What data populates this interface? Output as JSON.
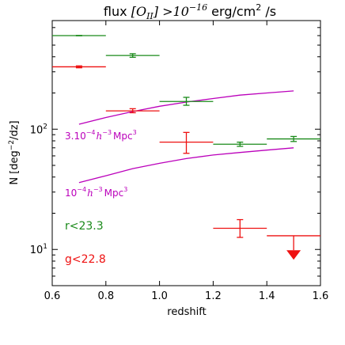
{
  "chart_data": {
    "type": "scatter",
    "title": {
      "prefix": "flux ",
      "math": "[O",
      "math_sub": "II",
      "math_close": "]",
      "gt": " >10",
      "gt_sup": "−16",
      "unit": " erg/cm",
      "unit_sup": "2",
      "unit_end": " /s"
    },
    "xlabel": "redshift",
    "ylabel": "N [deg",
    "ylabel_sup": "−2",
    "ylabel_end": "/dz]",
    "xlim": [
      0.6,
      1.6
    ],
    "ylim": [
      5,
      800
    ],
    "yscale": "log",
    "x_ticks": [
      "0.6",
      "0.8",
      "1.0",
      "1.2",
      "1.4",
      "1.6"
    ],
    "y_ticks": [
      {
        "base": "10",
        "exp": "1",
        "value": 10
      },
      {
        "base": "10",
        "exp": "2",
        "value": 100
      }
    ],
    "series": [
      {
        "name": "r<23.3",
        "color": "#1a8a1a",
        "points": [
          {
            "x": 0.7,
            "xerr": 0.1,
            "y": 600,
            "yerr": [
              598,
              602
            ]
          },
          {
            "x": 0.9,
            "xerr": 0.1,
            "y": 410,
            "yerr": [
              396,
              424
            ]
          },
          {
            "x": 1.1,
            "xerr": 0.1,
            "y": 170,
            "yerr": [
              158,
              184
            ]
          },
          {
            "x": 1.3,
            "xerr": 0.1,
            "y": 75,
            "yerr": [
              72,
              78
            ]
          },
          {
            "x": 1.5,
            "xerr": 0.1,
            "y": 83,
            "yerr": [
              79,
              87
            ]
          }
        ]
      },
      {
        "name": "g<22.8",
        "color": "#ee1111",
        "points": [
          {
            "x": 0.7,
            "xerr": 0.1,
            "y": 330,
            "yerr": [
              324,
              336
            ]
          },
          {
            "x": 0.9,
            "xerr": 0.1,
            "y": 142,
            "yerr": [
              137,
              148
            ]
          },
          {
            "x": 1.1,
            "xerr": 0.1,
            "y": 78,
            "yerr": [
              63,
              94
            ]
          },
          {
            "x": 1.3,
            "xerr": 0.1,
            "y": 15,
            "yerr": [
              12.6,
              17.7
            ]
          },
          {
            "x": 1.5,
            "xerr": 0.1,
            "y": 13,
            "upper_limit": true,
            "arrow_to": 9
          }
        ]
      }
    ],
    "model_curves": [
      {
        "label_prefix": "3.10",
        "label_sup": "−4",
        "label_math": "h",
        "label_sup2": "−3",
        "label_unit": "Mpc",
        "label_sup3": "3",
        "color": "#bb00bb",
        "x": [
          0.7,
          0.8,
          0.9,
          1.0,
          1.1,
          1.2,
          1.3,
          1.4,
          1.5
        ],
        "y": [
          110,
          125,
          140,
          155,
          168,
          180,
          192,
          200,
          208
        ]
      },
      {
        "label_prefix": "10",
        "label_sup": "−4",
        "label_math": "h",
        "label_sup2": "−3",
        "label_unit": "Mpc",
        "label_sup3": "3",
        "color": "#bb00bb",
        "x": [
          0.7,
          0.8,
          0.9,
          1.0,
          1.1,
          1.2,
          1.3,
          1.4,
          1.5
        ],
        "y": [
          36,
          41,
          47,
          52,
          57,
          61,
          64,
          67,
          70
        ]
      }
    ]
  }
}
